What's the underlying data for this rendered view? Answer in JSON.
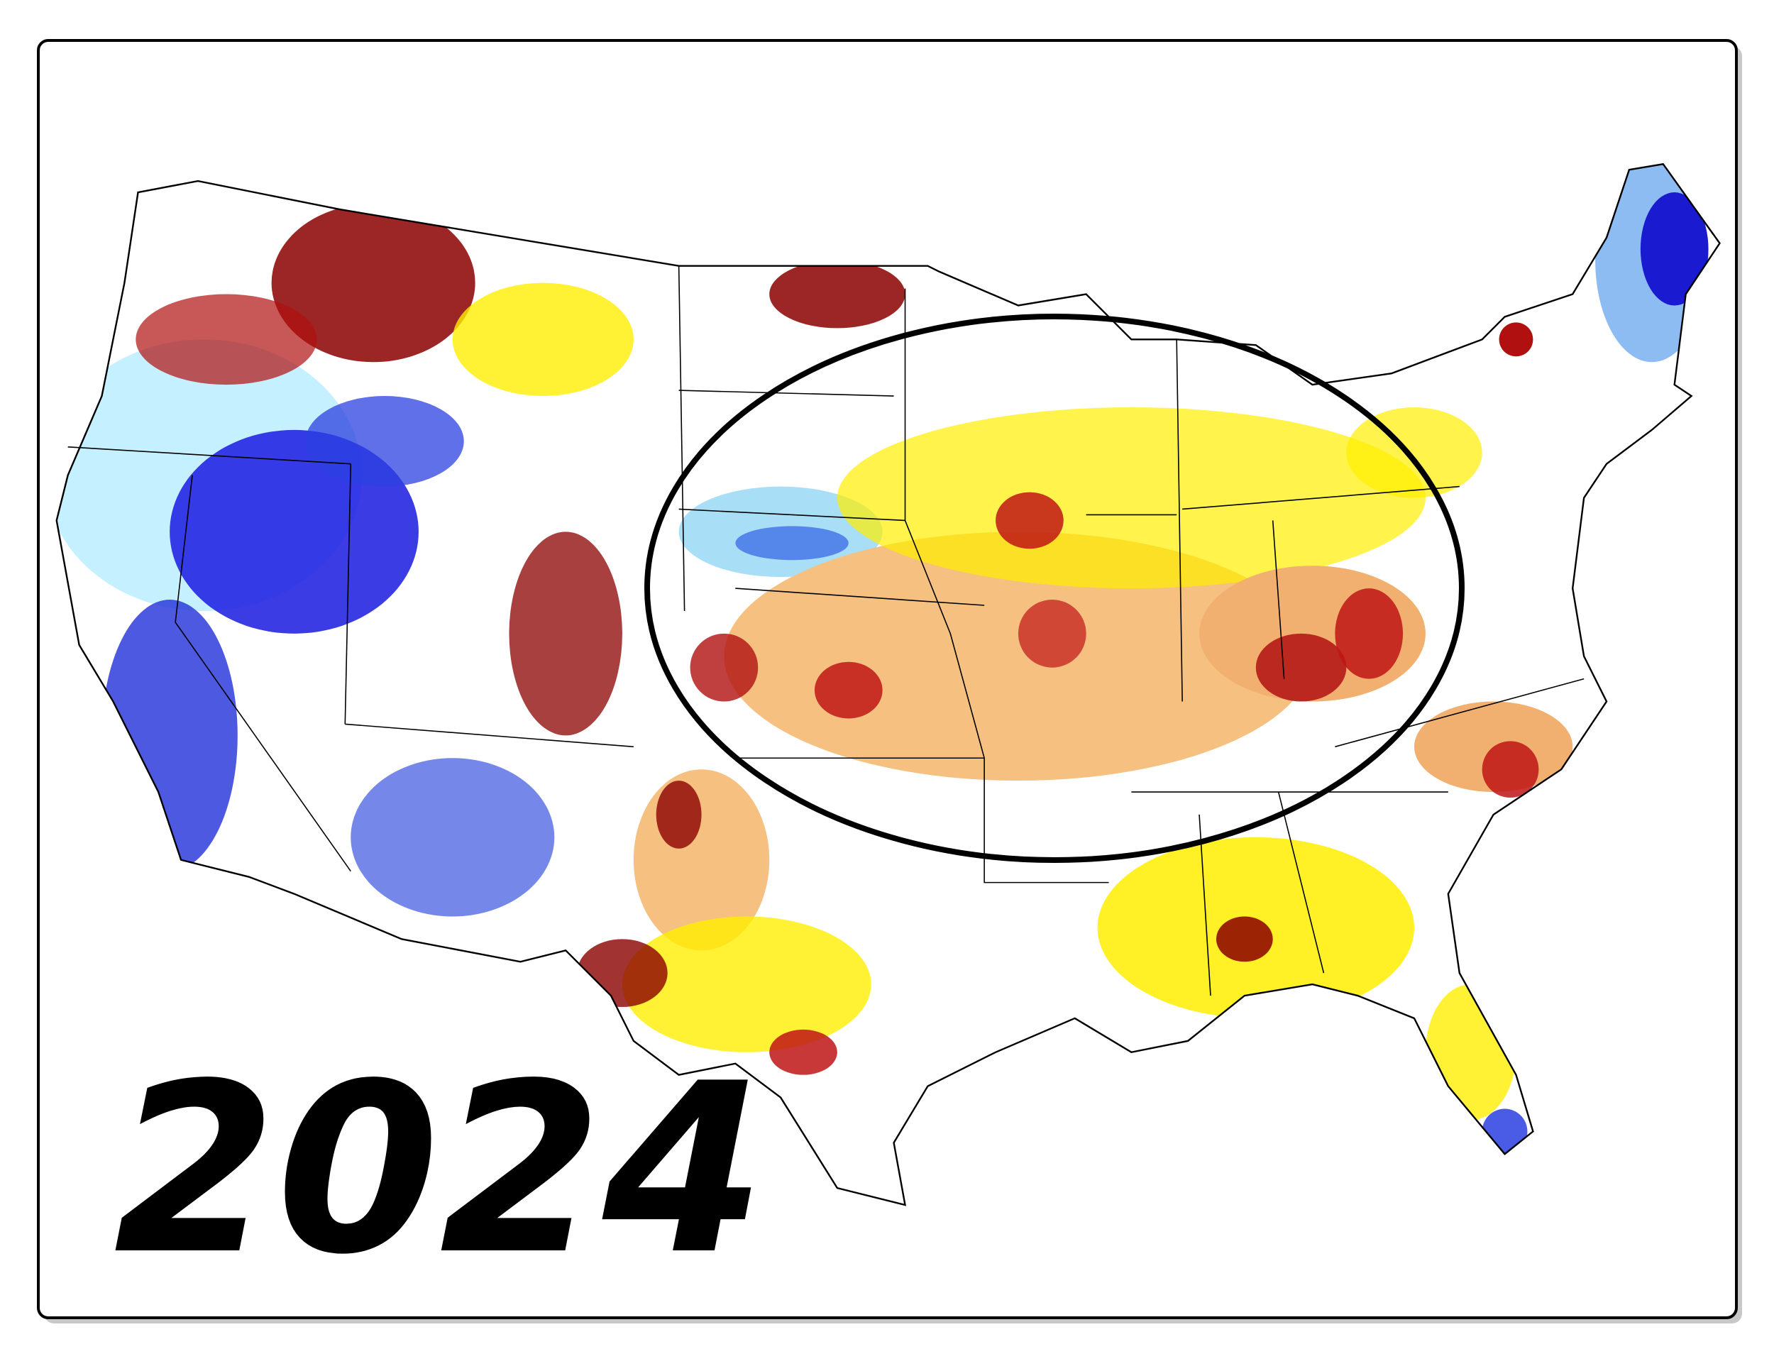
{
  "label": "2024"
}
